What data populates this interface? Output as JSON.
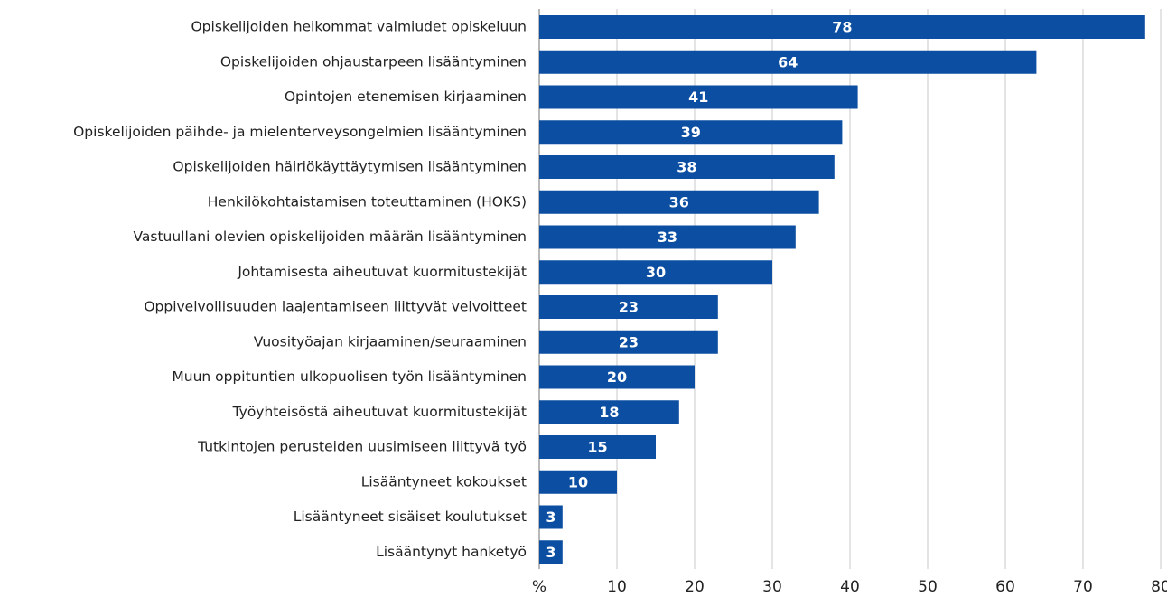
{
  "chart_data": {
    "type": "barh",
    "categories": [
      "Opiskelijoiden heikommat valmiudet opiskeluun",
      "Opiskelijoiden ohjaustarpeen lisääntyminen",
      "Opintojen etenemisen kirjaaminen",
      "Opiskelijoiden päihde- ja mielenterveysongelmien lisääntyminen",
      "Opiskelijoiden häiriökäyttäytymisen lisääntyminen",
      "Henkilökohtaistamisen toteuttaminen (HOKS)",
      "Vastuullani olevien opiskelijoiden määrän lisääntyminen",
      "Johtamisesta aiheutuvat kuormitustekijät",
      "Oppivelvollisuuden laajentamiseen liittyvät velvoitteet",
      "Vuosityöajan kirjaaminen/seuraaminen",
      "Muun oppituntien ulkopuolisen työn lisääntyminen",
      "Työyhteisöstä aiheutuvat kuormitustekijät",
      "Tutkintojen perusteiden uusimiseen liittyvä työ",
      "Lisääntyneet kokoukset",
      "Lisääntyneet sisäiset koulutukset",
      "Lisääntynyt hanketyö"
    ],
    "values": [
      78,
      64,
      41,
      39,
      38,
      36,
      33,
      30,
      23,
      23,
      20,
      18,
      15,
      10,
      3,
      3
    ],
    "color": "#0b4ea2",
    "xlim": [
      0,
      80
    ],
    "xticks": [
      {
        "value": 0,
        "label": "%"
      },
      10,
      20,
      30,
      40,
      50,
      60,
      70,
      80
    ],
    "grid": true
  }
}
